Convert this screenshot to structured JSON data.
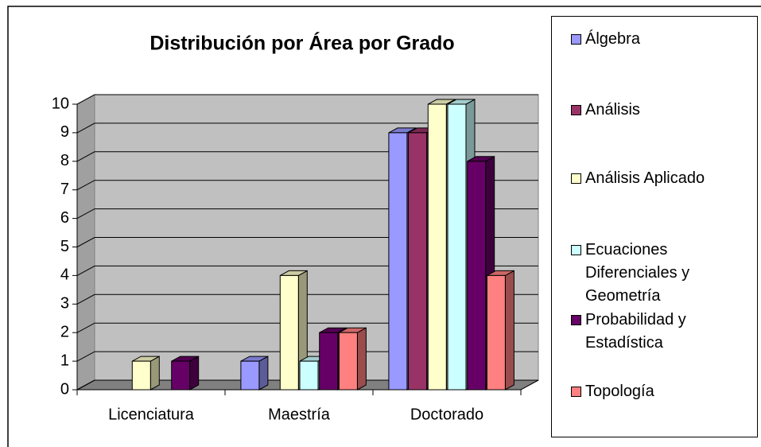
{
  "chart_data": {
    "type": "bar3d",
    "title": "Distribución por Área por Grado",
    "categories": [
      "Licenciatura",
      "Maestría",
      "Doctorado"
    ],
    "series": [
      {
        "name": "Álgebra",
        "color": "#9999ff",
        "values": [
          0,
          1,
          9
        ]
      },
      {
        "name": "Análisis",
        "color": "#993366",
        "values": [
          0,
          0,
          9
        ]
      },
      {
        "name": "Análisis Aplicado",
        "color": "#ffffcc",
        "values": [
          1,
          4,
          10
        ]
      },
      {
        "name": "Ecuaciones Diferenciales y Geometría",
        "color": "#ccffff",
        "values": [
          0,
          1,
          10
        ]
      },
      {
        "name": "Probabilidad y Estadística",
        "color": "#660066",
        "values": [
          1,
          2,
          8
        ]
      },
      {
        "name": "Topología",
        "color": "#ff8080",
        "values": [
          0,
          2,
          4
        ]
      }
    ],
    "ylim": [
      0,
      10
    ],
    "yticks": [
      0,
      1,
      2,
      3,
      4,
      5,
      6,
      7,
      8,
      9,
      10
    ],
    "grid": true,
    "legend": "right"
  }
}
